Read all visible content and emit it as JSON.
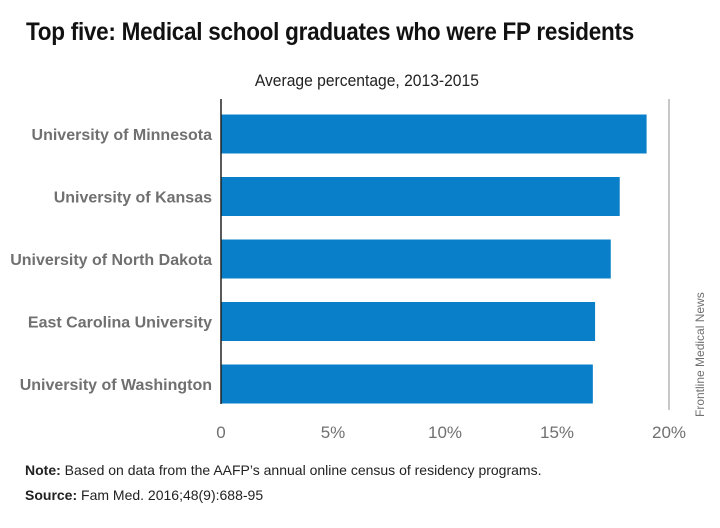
{
  "title": "Top five: Medical school graduates who were FP residents",
  "chart_data": {
    "type": "bar",
    "orientation": "horizontal",
    "subtitle": "Average percentage, 2013-2015",
    "categories": [
      "University of Minnesota",
      "University of Kansas",
      "University of North Dakota",
      "East Carolina University",
      "University of Washington"
    ],
    "values": [
      19.0,
      17.8,
      17.4,
      16.7,
      16.6
    ],
    "xlim": [
      0,
      20
    ],
    "ticks": [
      0,
      5,
      10,
      15,
      20
    ],
    "tick_labels": [
      "0",
      "5%",
      "10%",
      "15%",
      "20%"
    ],
    "bar_color": "#0a7fc9",
    "grid": false
  },
  "credit": "Frontline Medical News",
  "note": {
    "label": "Note:",
    "text": " Based on data from the AAFP’s annual online census of residency programs."
  },
  "source": {
    "label": "Source:",
    "text": " Fam Med. 2016;48(9):688-95"
  }
}
